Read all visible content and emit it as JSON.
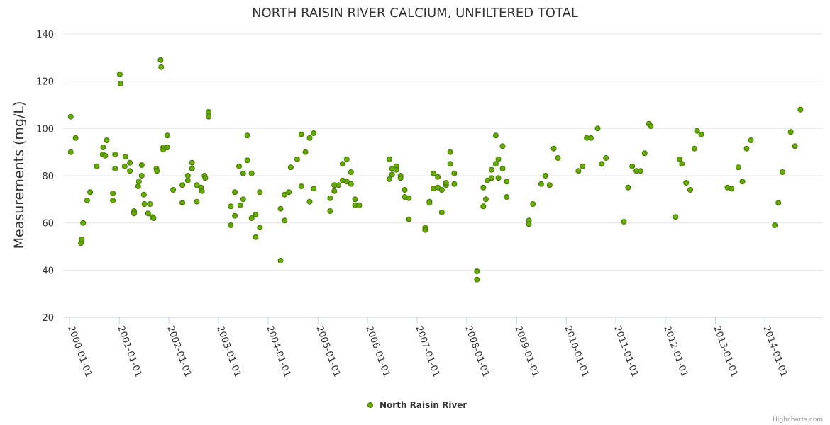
{
  "chart_data": {
    "type": "scatter",
    "title": "NORTH RAISIN RIVER CALCIUM, UNFILTERED TOTAL",
    "ylabel": "Measurements (mg/L)",
    "xlabel": "",
    "ylim": [
      20,
      140
    ],
    "yticks": [
      20,
      40,
      60,
      80,
      100,
      120,
      140
    ],
    "xlim": [
      "2000-01-01",
      "2014-12-31"
    ],
    "xticks": [
      "2000-01-01",
      "2001-01-01",
      "2002-01-01",
      "2003-01-01",
      "2004-01-01",
      "2005-01-01",
      "2006-01-01",
      "2007-01-01",
      "2008-01-01",
      "2009-01-01",
      "2010-01-01",
      "2011-01-01",
      "2012-01-01",
      "2013-01-01",
      "2014-01-01"
    ],
    "grid": true,
    "legend_position": "bottom-center",
    "series": [
      {
        "name": "North Raisin River",
        "color": "#66aa00",
        "points": [
          [
            "2000-01-10",
            105
          ],
          [
            "2000-01-10",
            90
          ],
          [
            "2000-02-15",
            96
          ],
          [
            "2000-03-25",
            51.5
          ],
          [
            "2000-04-01",
            53
          ],
          [
            "2000-04-10",
            60
          ],
          [
            "2000-05-10",
            69.5
          ],
          [
            "2000-06-01",
            73
          ],
          [
            "2000-07-20",
            84
          ],
          [
            "2000-09-01",
            89
          ],
          [
            "2000-09-05",
            92
          ],
          [
            "2000-09-20",
            88.5
          ],
          [
            "2000-10-01",
            95
          ],
          [
            "2000-11-15",
            72.5
          ],
          [
            "2000-11-15",
            69.5
          ],
          [
            "2000-12-01",
            89
          ],
          [
            "2000-12-01",
            83
          ],
          [
            "2001-01-05",
            123
          ],
          [
            "2001-01-10",
            119
          ],
          [
            "2001-02-10",
            84
          ],
          [
            "2001-02-15",
            88
          ],
          [
            "2001-03-20",
            85.5
          ],
          [
            "2001-03-20",
            82
          ],
          [
            "2001-04-20",
            65
          ],
          [
            "2001-04-20",
            64
          ],
          [
            "2001-05-20",
            75.5
          ],
          [
            "2001-05-25",
            77.5
          ],
          [
            "2001-06-15",
            80
          ],
          [
            "2001-06-15",
            84.5
          ],
          [
            "2001-07-01",
            72
          ],
          [
            "2001-07-05",
            68
          ],
          [
            "2001-08-01",
            64
          ],
          [
            "2001-08-15",
            68
          ],
          [
            "2001-09-01",
            62.5
          ],
          [
            "2001-09-10",
            62
          ],
          [
            "2001-10-01",
            83
          ],
          [
            "2001-10-05",
            82
          ],
          [
            "2001-11-01",
            129
          ],
          [
            "2001-11-05",
            126
          ],
          [
            "2001-11-20",
            92
          ],
          [
            "2001-11-20",
            91
          ],
          [
            "2001-12-20",
            97
          ],
          [
            "2001-12-20",
            92
          ],
          [
            "2002-02-01",
            74
          ],
          [
            "2002-04-10",
            76
          ],
          [
            "2002-04-10",
            68.5
          ],
          [
            "2002-05-20",
            78
          ],
          [
            "2002-05-20",
            80
          ],
          [
            "2002-06-20",
            85.5
          ],
          [
            "2002-06-20",
            83
          ],
          [
            "2002-07-25",
            76
          ],
          [
            "2002-07-25",
            69
          ],
          [
            "2002-08-25",
            75
          ],
          [
            "2002-09-01",
            73.5
          ],
          [
            "2002-09-20",
            80
          ],
          [
            "2002-09-25",
            79
          ],
          [
            "2002-10-20",
            107
          ],
          [
            "2002-10-20",
            105
          ],
          [
            "2003-04-01",
            59
          ],
          [
            "2003-04-01",
            67
          ],
          [
            "2003-05-01",
            73
          ],
          [
            "2003-05-01",
            63
          ],
          [
            "2003-06-01",
            84
          ],
          [
            "2003-06-10",
            67.5
          ],
          [
            "2003-07-01",
            70
          ],
          [
            "2003-07-01",
            81
          ],
          [
            "2003-08-01",
            86.5
          ],
          [
            "2003-08-01",
            97
          ],
          [
            "2003-09-01",
            81
          ],
          [
            "2003-09-01",
            62
          ],
          [
            "2003-10-01",
            54
          ],
          [
            "2003-10-01",
            63.5
          ],
          [
            "2003-11-01",
            73
          ],
          [
            "2003-11-01",
            58
          ],
          [
            "2004-04-01",
            44
          ],
          [
            "2004-04-01",
            66
          ],
          [
            "2004-05-01",
            61
          ],
          [
            "2004-05-01",
            72
          ],
          [
            "2004-06-01",
            73
          ],
          [
            "2004-06-15",
            83.5
          ],
          [
            "2004-08-01",
            87
          ],
          [
            "2004-09-01",
            97.5
          ],
          [
            "2004-09-01",
            75.5
          ],
          [
            "2004-10-01",
            90
          ],
          [
            "2004-11-01",
            69
          ],
          [
            "2004-11-01",
            96
          ],
          [
            "2004-12-01",
            98
          ],
          [
            "2004-12-01",
            74.5
          ],
          [
            "2005-04-01",
            65
          ],
          [
            "2005-04-01",
            70.5
          ],
          [
            "2005-05-01",
            73.5
          ],
          [
            "2005-05-01",
            76
          ],
          [
            "2005-06-01",
            76
          ],
          [
            "2005-07-01",
            85
          ],
          [
            "2005-07-01",
            78
          ],
          [
            "2005-08-01",
            77.5
          ],
          [
            "2005-08-01",
            87
          ],
          [
            "2005-09-01",
            76.5
          ],
          [
            "2005-09-01",
            81.5
          ],
          [
            "2005-10-01",
            70
          ],
          [
            "2005-10-01",
            67.5
          ],
          [
            "2005-11-01",
            67.5
          ],
          [
            "2006-06-10",
            87
          ],
          [
            "2006-06-10",
            78.5
          ],
          [
            "2006-07-01",
            80.5
          ],
          [
            "2006-07-01",
            83
          ],
          [
            "2006-08-01",
            84
          ],
          [
            "2006-08-01",
            82.5
          ],
          [
            "2006-09-01",
            80
          ],
          [
            "2006-09-01",
            79
          ],
          [
            "2006-10-01",
            74
          ],
          [
            "2006-10-01",
            71
          ],
          [
            "2006-11-01",
            70.5
          ],
          [
            "2006-11-01",
            61.5
          ],
          [
            "2007-03-01",
            58
          ],
          [
            "2007-03-01",
            57
          ],
          [
            "2007-04-01",
            69
          ],
          [
            "2007-04-01",
            68.5
          ],
          [
            "2007-05-01",
            74.5
          ],
          [
            "2007-05-01",
            81
          ],
          [
            "2007-06-01",
            79.5
          ],
          [
            "2007-06-01",
            75
          ],
          [
            "2007-07-01",
            74
          ],
          [
            "2007-07-01",
            64.5
          ],
          [
            "2007-08-01",
            76
          ],
          [
            "2007-08-01",
            77
          ],
          [
            "2007-09-01",
            90
          ],
          [
            "2007-09-01",
            85
          ],
          [
            "2007-10-01",
            81
          ],
          [
            "2007-10-01",
            76.5
          ],
          [
            "2008-03-15",
            39.5
          ],
          [
            "2008-03-15",
            36
          ],
          [
            "2008-05-01",
            67
          ],
          [
            "2008-05-01",
            75
          ],
          [
            "2008-05-20",
            70
          ],
          [
            "2008-06-01",
            78
          ],
          [
            "2008-07-01",
            79
          ],
          [
            "2008-07-01",
            82.5
          ],
          [
            "2008-08-01",
            85
          ],
          [
            "2008-08-01",
            97
          ],
          [
            "2008-08-20",
            87
          ],
          [
            "2008-08-20",
            79
          ],
          [
            "2008-09-20",
            83
          ],
          [
            "2008-09-20",
            92.5
          ],
          [
            "2008-10-20",
            71
          ],
          [
            "2008-10-20",
            77.5
          ],
          [
            "2009-04-01",
            61
          ],
          [
            "2009-04-01",
            59.5
          ],
          [
            "2009-05-01",
            68
          ],
          [
            "2009-07-01",
            76.5
          ],
          [
            "2009-08-01",
            80
          ],
          [
            "2009-09-01",
            76
          ],
          [
            "2009-10-01",
            91.5
          ],
          [
            "2009-11-01",
            87.5
          ],
          [
            "2010-04-01",
            82
          ],
          [
            "2010-05-01",
            84
          ],
          [
            "2010-06-01",
            96
          ],
          [
            "2010-07-01",
            96
          ],
          [
            "2010-08-20",
            100
          ],
          [
            "2010-09-20",
            85
          ],
          [
            "2010-10-20",
            87.5
          ],
          [
            "2011-03-01",
            60.5
          ],
          [
            "2011-04-01",
            75
          ],
          [
            "2011-05-01",
            84
          ],
          [
            "2011-06-01",
            82
          ],
          [
            "2011-07-01",
            82
          ],
          [
            "2011-08-01",
            89.5
          ],
          [
            "2011-09-01",
            102
          ],
          [
            "2011-09-15",
            101
          ],
          [
            "2012-03-15",
            62.5
          ],
          [
            "2012-04-15",
            87
          ],
          [
            "2012-05-01",
            85
          ],
          [
            "2012-06-01",
            77
          ],
          [
            "2012-07-01",
            74
          ],
          [
            "2012-08-01",
            91.5
          ],
          [
            "2012-08-20",
            99
          ],
          [
            "2012-09-20",
            97.5
          ],
          [
            "2013-04-01",
            75
          ],
          [
            "2013-05-01",
            74.5
          ],
          [
            "2013-06-20",
            83.5
          ],
          [
            "2013-07-20",
            77.5
          ],
          [
            "2013-08-20",
            91.5
          ],
          [
            "2013-09-20",
            95
          ],
          [
            "2014-03-15",
            59
          ],
          [
            "2014-04-10",
            68.5
          ],
          [
            "2014-05-10",
            81.5
          ],
          [
            "2014-07-10",
            98.5
          ],
          [
            "2014-08-10",
            92.5
          ],
          [
            "2014-09-20",
            108
          ]
        ]
      }
    ]
  },
  "credits": "Highcharts.com"
}
